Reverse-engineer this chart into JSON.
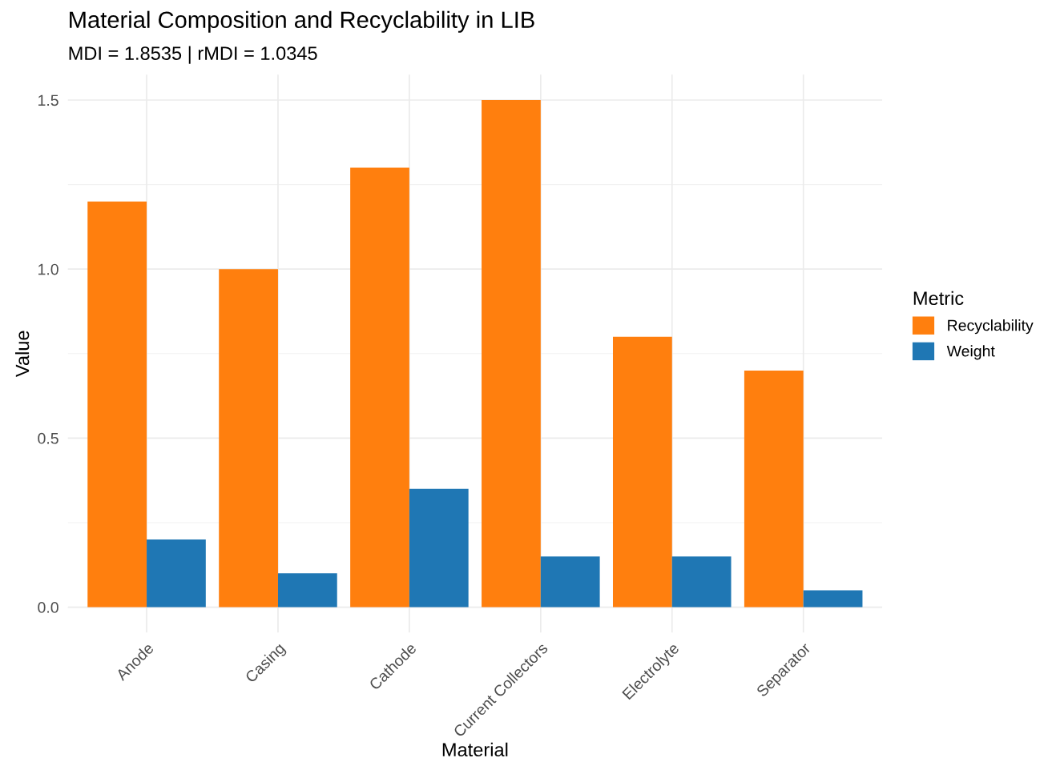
{
  "chart_data": {
    "type": "bar",
    "title": "Material Composition and Recyclability in LIB",
    "subtitle": "MDI = 1.8535 | rMDI = 1.0345",
    "xlabel": "Material",
    "ylabel": "Value",
    "legend_title": "Metric",
    "categories": [
      "Anode",
      "Casing",
      "Cathode",
      "Current Collectors",
      "Electrolyte",
      "Separator"
    ],
    "series": [
      {
        "name": "Recyclability",
        "color": "#ff7f0e",
        "values": [
          1.2,
          1.0,
          1.3,
          1.5,
          0.8,
          0.7
        ]
      },
      {
        "name": "Weight",
        "color": "#1f77b4",
        "values": [
          0.2,
          0.1,
          0.35,
          0.15,
          0.15,
          0.05
        ]
      }
    ],
    "ylim": [
      -0.075,
      1.575
    ],
    "yticks": [
      {
        "value": 0,
        "label": "0.0"
      },
      0.5,
      {
        "value": 1,
        "label": "1.0"
      },
      1.5
    ],
    "grid": true,
    "legend": "right"
  }
}
